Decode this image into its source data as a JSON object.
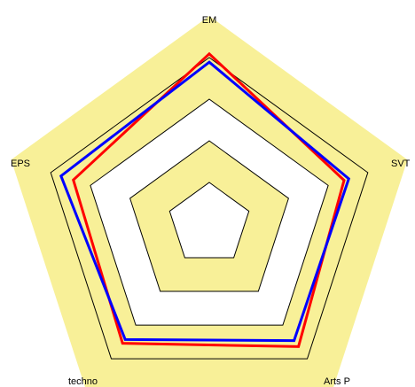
{
  "chart_data": {
    "type": "radar",
    "axes": [
      "EM",
      "SVT",
      "Arts P",
      "techno",
      "EPS"
    ],
    "bands": {
      "levels": [
        1,
        2,
        3,
        4,
        5
      ],
      "shaded_levels": [
        2,
        4,
        5
      ],
      "fill_color": "#f8f098",
      "edge_color": "#000000"
    },
    "max": 5,
    "series": [
      {
        "values": [
          4.09,
          3.4,
          3.64,
          3.54,
          3.43
        ],
        "color": "#ff0000"
      },
      {
        "values": [
          3.89,
          3.52,
          3.46,
          3.43,
          3.74
        ],
        "color": "#0000ff"
      }
    ],
    "title": "",
    "legend": "none"
  }
}
